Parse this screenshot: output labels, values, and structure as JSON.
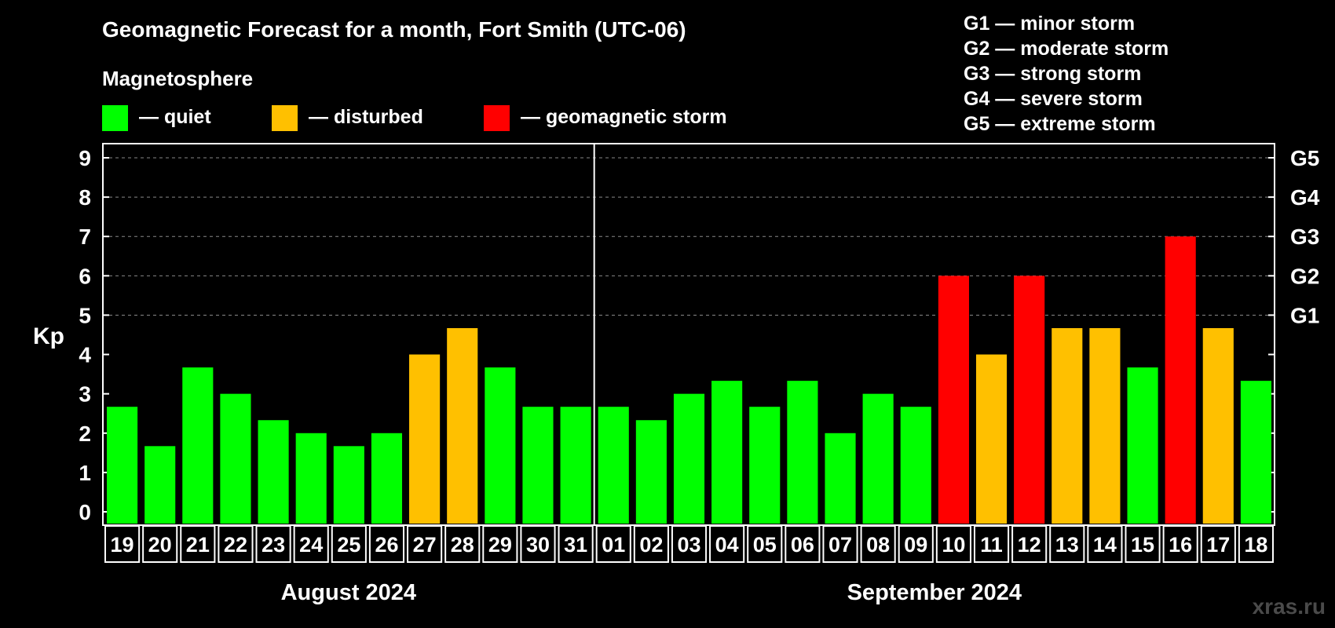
{
  "chart_data": {
    "type": "bar",
    "title": "Geomagnetic Forecast for a month, Fort Smith (UTC-06)",
    "legend_title": "Magnetosphere",
    "legend": [
      {
        "label": "— quiet",
        "color": "#00ff00"
      },
      {
        "label": "— disturbed",
        "color": "#ffc000"
      },
      {
        "label": "— geomagnetic storm",
        "color": "#ff0000"
      }
    ],
    "g_scale": [
      "G1 — minor storm",
      "G2 — moderate storm",
      "G3 — strong storm",
      "G4 — severe storm",
      "G5 — extreme storm"
    ],
    "ylabel": "Kp",
    "ylim": [
      0,
      9
    ],
    "yticks": [
      "0",
      "1",
      "2",
      "3",
      "4",
      "5",
      "6",
      "7",
      "8",
      "9"
    ],
    "g_ticks": [
      {
        "kp": 5,
        "label": "G1"
      },
      {
        "kp": 6,
        "label": "G2"
      },
      {
        "kp": 7,
        "label": "G3"
      },
      {
        "kp": 8,
        "label": "G4"
      },
      {
        "kp": 9,
        "label": "G5"
      }
    ],
    "categories": [
      "19",
      "20",
      "21",
      "22",
      "23",
      "24",
      "25",
      "26",
      "27",
      "28",
      "29",
      "30",
      "31",
      "01",
      "02",
      "03",
      "04",
      "05",
      "06",
      "07",
      "08",
      "09",
      "10",
      "11",
      "12",
      "13",
      "14",
      "15",
      "16",
      "17",
      "18"
    ],
    "values": [
      2.67,
      1.67,
      3.67,
      3,
      2.33,
      2,
      1.67,
      2,
      4,
      4.67,
      3.67,
      2.67,
      2.67,
      2.67,
      2.33,
      3,
      3.33,
      2.67,
      3.33,
      2,
      3,
      2.67,
      6,
      4,
      6,
      4.67,
      4.67,
      3.67,
      7,
      4.67,
      3.33
    ],
    "months": [
      {
        "label": "August 2024",
        "days": 13
      },
      {
        "label": "September 2024",
        "days": 18
      }
    ],
    "colors": {
      "quiet": "#00ff00",
      "disturbed": "#ffc000",
      "storm": "#ff0000",
      "grid": "#888888"
    },
    "grid": true
  },
  "watermark": "xras.ru"
}
